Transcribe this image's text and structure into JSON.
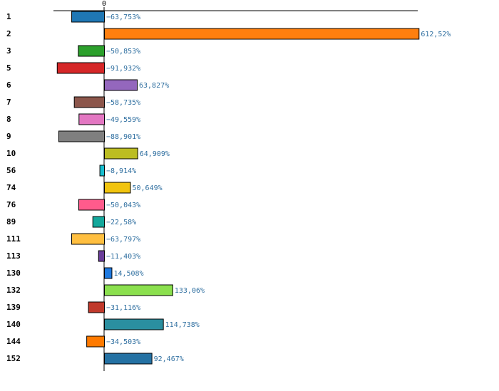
{
  "chart_data": {
    "type": "bar",
    "orientation": "horizontal",
    "title": "",
    "xlabel": "",
    "ylabel": "",
    "xlim": [
      -100,
      650
    ],
    "x_ticks": [
      0
    ],
    "x_tick_labels": [
      "0"
    ],
    "grid": false,
    "categories": [
      "1",
      "2",
      "3",
      "5",
      "6",
      "7",
      "8",
      "9",
      "10",
      "56",
      "74",
      "76",
      "89",
      "111",
      "113",
      "130",
      "132",
      "139",
      "140",
      "144",
      "152"
    ],
    "values": [
      -63.753,
      612.52,
      -50.853,
      -91.932,
      63.827,
      -58.735,
      -49.559,
      -88.901,
      64.909,
      -8.914,
      50.649,
      -50.043,
      -22.58,
      -63.797,
      -11.403,
      14.508,
      133.06,
      -31.116,
      114.738,
      -34.503,
      92.467
    ],
    "value_labels": [
      "−63,753%",
      "612,52%",
      "−50,853%",
      "−91,932%",
      "63,827%",
      "−58,735%",
      "−49,559%",
      "−88,901%",
      "64,909%",
      "−8,914%",
      "50,649%",
      "−50,043%",
      "−22,58%",
      "−63,797%",
      "−11,403%",
      "14,508%",
      "133,06%",
      "−31,116%",
      "114,738%",
      "−34,503%",
      "92,467%"
    ],
    "colors": [
      "#1f77b4",
      "#ff7f0e",
      "#2ca02c",
      "#d62728",
      "#9467bd",
      "#8c564b",
      "#e377c2",
      "#7f7f7f",
      "#bcbd22",
      "#17becf",
      "#f1c40f",
      "#ff5b8c",
      "#14a89c",
      "#ffbf40",
      "#6a3d9a",
      "#1f7ae0",
      "#8be04e",
      "#c0392b",
      "#2a8fa0",
      "#ff7a00",
      "#2471a3"
    ]
  }
}
